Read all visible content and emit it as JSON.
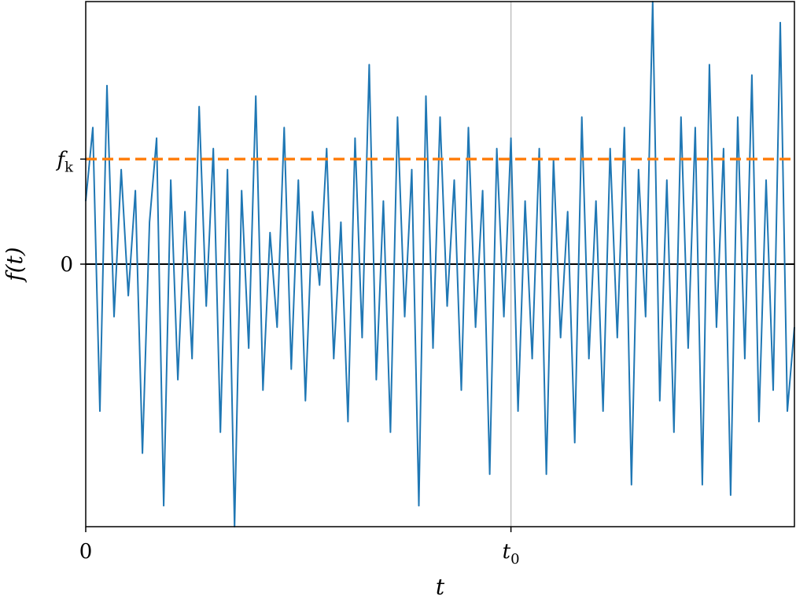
{
  "chart_data": {
    "type": "line",
    "title": "",
    "xlabel": "t",
    "ylabel": "f(t)",
    "xlim": [
      0,
      1
    ],
    "ylim": [
      -2.5,
      2.5
    ],
    "x_ticks": [
      {
        "value": 0,
        "label": "0"
      },
      {
        "value": 0.6,
        "label": "t",
        "subscript": "0"
      }
    ],
    "y_ticks": [
      {
        "value": 0,
        "label": "0"
      },
      {
        "value": 1,
        "label": "f",
        "subscript": "k"
      }
    ],
    "reference_lines": [
      {
        "orientation": "horizontal",
        "value": 0,
        "color": "#000000",
        "style": "solid"
      },
      {
        "orientation": "horizontal",
        "value": 1,
        "color": "#ff7f0e",
        "style": "dashed",
        "label": "f_k"
      },
      {
        "orientation": "vertical",
        "value": 0.6,
        "color": "#bfbfbf",
        "style": "solid",
        "label": "t_0"
      }
    ],
    "grid": false,
    "series": [
      {
        "color": "#1f77b4",
        "x": [
          0,
          0.01,
          0.02,
          0.03,
          0.04,
          0.05,
          0.06,
          0.07,
          0.08,
          0.09,
          0.1,
          0.11,
          0.12,
          0.13,
          0.14,
          0.15,
          0.16,
          0.17,
          0.18,
          0.19,
          0.2,
          0.21,
          0.22,
          0.23,
          0.24,
          0.25,
          0.26,
          0.27,
          0.28,
          0.29,
          0.3,
          0.31,
          0.32,
          0.33,
          0.34,
          0.35,
          0.36,
          0.37,
          0.38,
          0.39,
          0.4,
          0.41,
          0.42,
          0.43,
          0.44,
          0.45,
          0.46,
          0.47,
          0.48,
          0.49,
          0.5,
          0.51,
          0.52,
          0.53,
          0.54,
          0.55,
          0.56,
          0.57,
          0.58,
          0.59,
          0.6,
          0.61,
          0.62,
          0.63,
          0.64,
          0.65,
          0.66,
          0.67,
          0.68,
          0.69,
          0.7,
          0.71,
          0.72,
          0.73,
          0.74,
          0.75,
          0.76,
          0.77,
          0.78,
          0.79,
          0.8,
          0.81,
          0.82,
          0.83,
          0.84,
          0.85,
          0.86,
          0.87,
          0.88,
          0.89,
          0.9,
          0.91,
          0.92,
          0.93,
          0.94,
          0.95,
          0.96,
          0.97,
          0.98,
          0.99,
          1.0
        ],
        "y": [
          0.6,
          1.3,
          -1.4,
          1.7,
          -0.5,
          0.9,
          -0.3,
          0.7,
          -1.8,
          0.4,
          1.2,
          -2.3,
          0.8,
          -1.1,
          0.5,
          -0.9,
          1.5,
          -0.4,
          1.1,
          -1.6,
          0.9,
          -2.5,
          0.7,
          -0.8,
          1.6,
          -1.2,
          0.3,
          -0.6,
          1.3,
          -1.0,
          0.8,
          -1.3,
          0.5,
          -0.2,
          1.1,
          -0.9,
          0.4,
          -1.5,
          1.2,
          -0.7,
          1.9,
          -1.1,
          0.6,
          -1.6,
          1.4,
          -0.5,
          0.9,
          -2.3,
          1.6,
          -0.8,
          1.4,
          -0.4,
          0.8,
          -1.2,
          1.3,
          -0.6,
          0.7,
          -2.0,
          1.1,
          -0.5,
          1.2,
          -1.4,
          0.6,
          -0.9,
          1.1,
          -2.0,
          1.0,
          -0.7,
          0.5,
          -1.7,
          1.4,
          -0.9,
          0.6,
          -1.4,
          1.1,
          -0.7,
          1.3,
          -2.1,
          0.9,
          -0.5,
          2.5,
          -1.3,
          0.8,
          -1.6,
          1.4,
          -0.8,
          1.3,
          -2.1,
          1.9,
          -0.6,
          1.1,
          -2.2,
          1.4,
          -0.9,
          1.8,
          -1.5,
          0.8,
          -1.2,
          2.3,
          -1.4,
          -0.6
        ]
      }
    ]
  }
}
